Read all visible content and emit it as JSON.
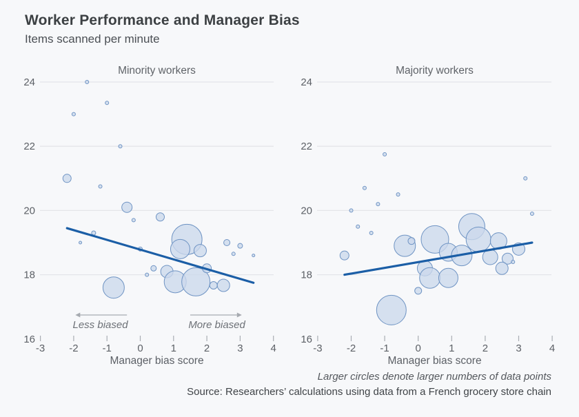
{
  "header": {
    "title": "Worker Performance and Manager Bias",
    "subtitle": "Items scanned per minute"
  },
  "footer": {
    "note": "Larger circles denote larger numbers of data points",
    "source": "Source: Researchers’ calculations using data from a French grocery store chain"
  },
  "colors": {
    "background": "#f7f8fa",
    "bubble_fill": "#ccd8ec",
    "bubble_stroke": "#6e93c3",
    "trend_line": "#1b5ea6",
    "gridline": "#e4e5e9",
    "tick_mark": "#a9adb3",
    "axis_text": "#5c6066",
    "panel_title_text": "#5f6368",
    "annotation_text": "#6d7177",
    "arrow": "#a6aab0"
  },
  "chart_data": [
    {
      "type": "scatter",
      "title": "Minority workers",
      "xlabel": "Manager bias score",
      "ylabel": "Items scanned per minute",
      "xlim": [
        -3,
        4
      ],
      "ylim": [
        16,
        24
      ],
      "x_ticks": [
        -3,
        -2,
        -1,
        0,
        1,
        2,
        3,
        4
      ],
      "y_ticks": [
        24,
        22,
        20,
        18,
        16
      ],
      "grid_values": [
        24,
        22,
        20,
        18
      ],
      "legend": "none",
      "points": [
        [
          -1.6,
          24.0,
          2.5
        ],
        [
          -1.0,
          23.35,
          2.5
        ],
        [
          -2.0,
          23.0,
          2.5
        ],
        [
          -0.6,
          22.0,
          2.5
        ],
        [
          -2.2,
          21.0,
          6
        ],
        [
          -1.2,
          20.75,
          2.5
        ],
        [
          -0.4,
          20.1,
          7.5
        ],
        [
          -0.2,
          19.7,
          2.5
        ],
        [
          0.6,
          19.8,
          6
        ],
        [
          -1.4,
          19.3,
          3
        ],
        [
          -1.8,
          19.0,
          2
        ],
        [
          0.0,
          18.8,
          3
        ],
        [
          1.4,
          19.1,
          22
        ],
        [
          1.2,
          18.8,
          14
        ],
        [
          1.8,
          18.75,
          9
        ],
        [
          2.6,
          19.0,
          4.5
        ],
        [
          3.0,
          18.9,
          3.5
        ],
        [
          2.8,
          18.65,
          2.5
        ],
        [
          3.4,
          18.6,
          2
        ],
        [
          0.4,
          18.2,
          4
        ],
        [
          0.2,
          18.0,
          2.5
        ],
        [
          0.8,
          18.1,
          9
        ],
        [
          1.05,
          17.78,
          16
        ],
        [
          1.67,
          17.78,
          20.5
        ],
        [
          2.0,
          18.2,
          6.5
        ],
        [
          2.2,
          17.67,
          5.5
        ],
        [
          2.5,
          17.67,
          9
        ],
        [
          -0.8,
          17.6,
          15.5
        ]
      ],
      "trend": {
        "x1": -2.2,
        "y1": 19.45,
        "x2": 3.4,
        "y2": 17.75
      },
      "annotations": [
        {
          "label": "Less biased",
          "label_x": -1.2,
          "arrow_from_x": -0.4,
          "arrow_to_x": -1.95
        },
        {
          "label": "More biased",
          "label_x": 2.3,
          "arrow_from_x": 1.5,
          "arrow_to_x": 3.05
        }
      ]
    },
    {
      "type": "scatter",
      "title": "Majority workers",
      "xlabel": "Manager bias score",
      "ylabel": "Items scanned per minute",
      "xlim": [
        -3,
        4
      ],
      "ylim": [
        16,
        24
      ],
      "x_ticks": [
        -3,
        -2,
        -1,
        0,
        1,
        2,
        3,
        4
      ],
      "y_ticks": [
        24,
        22,
        20,
        18,
        16
      ],
      "grid_values": [
        24,
        22,
        20,
        18
      ],
      "legend": "none",
      "points": [
        [
          -1.0,
          21.75,
          2.5
        ],
        [
          3.2,
          21.0,
          2.5
        ],
        [
          -1.6,
          20.7,
          2.5
        ],
        [
          -0.6,
          20.5,
          2.5
        ],
        [
          -1.2,
          20.2,
          2.5
        ],
        [
          -2.0,
          20.0,
          2.5
        ],
        [
          3.4,
          19.9,
          2.5
        ],
        [
          -1.8,
          19.5,
          2.5
        ],
        [
          -1.4,
          19.3,
          2.5
        ],
        [
          -2.2,
          18.6,
          6.5
        ],
        [
          -0.4,
          18.9,
          15.5
        ],
        [
          -0.2,
          19.05,
          5
        ],
        [
          0.5,
          19.1,
          20
        ],
        [
          1.6,
          19.5,
          19
        ],
        [
          1.8,
          19.1,
          18
        ],
        [
          0.9,
          18.7,
          13
        ],
        [
          1.3,
          18.6,
          15
        ],
        [
          2.4,
          19.05,
          12
        ],
        [
          3.0,
          18.8,
          9
        ],
        [
          2.15,
          18.55,
          11
        ],
        [
          2.67,
          18.5,
          8
        ],
        [
          2.83,
          18.4,
          2.5
        ],
        [
          2.5,
          18.2,
          9
        ],
        [
          0.2,
          18.2,
          11
        ],
        [
          0.35,
          17.9,
          15
        ],
        [
          0.9,
          17.9,
          14
        ],
        [
          0.0,
          17.5,
          5
        ],
        [
          -0.8,
          16.9,
          21.5
        ]
      ],
      "trend": {
        "x1": -2.2,
        "y1": 18.0,
        "x2": 3.4,
        "y2": 19.0
      },
      "annotations": []
    }
  ]
}
